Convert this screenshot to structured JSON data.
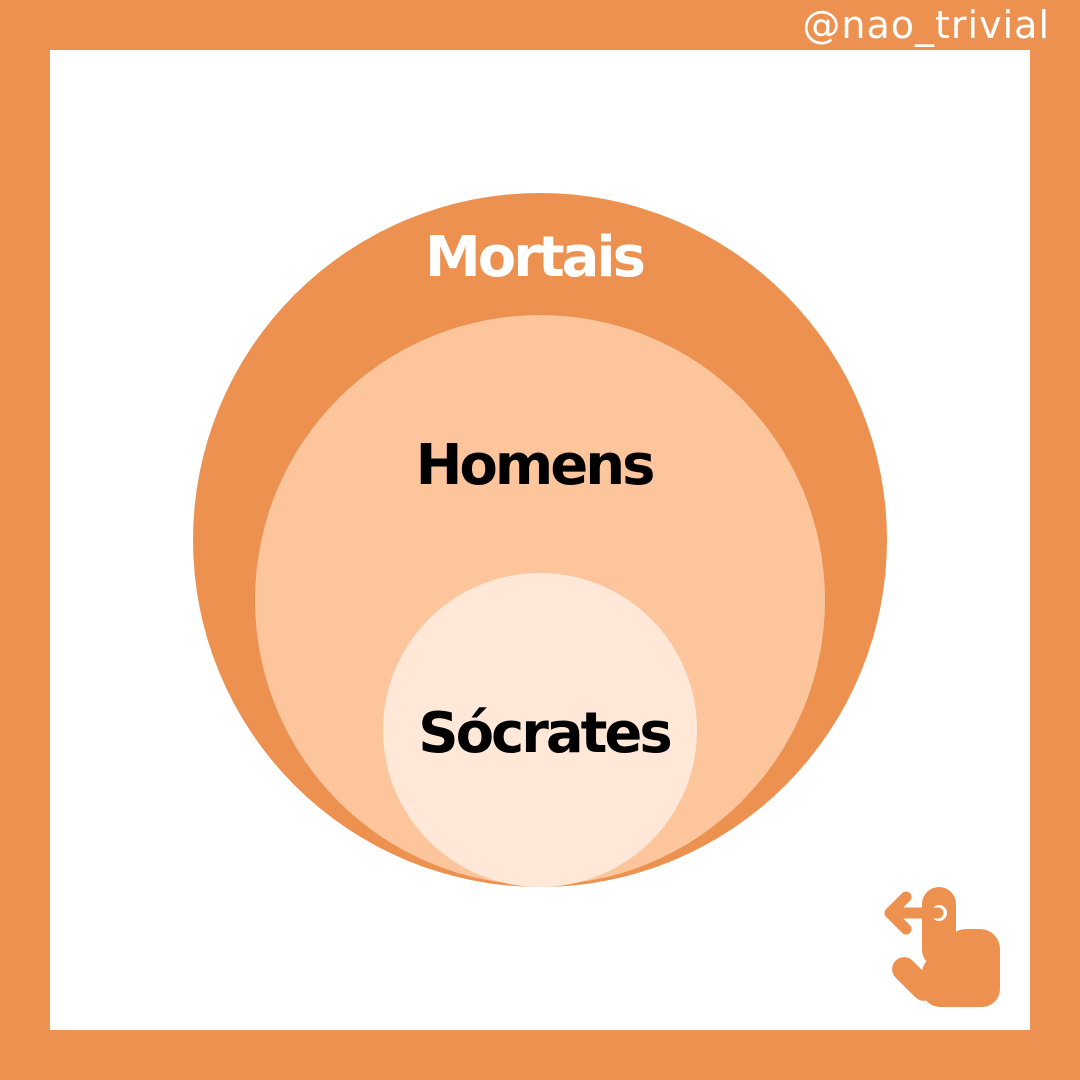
{
  "header": {
    "handle": "@nao_trivial"
  },
  "diagram": {
    "sets": [
      {
        "label": "Mortais"
      },
      {
        "label": "Homens"
      },
      {
        "label": "Sócrates"
      }
    ]
  },
  "icons": {
    "swipe": "swipe-left-hand-icon"
  },
  "colors": {
    "frame": "#EC9150",
    "outer_set": "#EC9150",
    "middle_set": "#FDC59C",
    "inner_set": "#FFE8D7",
    "panel": "#FFFFFF",
    "outer_label": "#FFFFFF",
    "inner_labels": "#000000"
  }
}
